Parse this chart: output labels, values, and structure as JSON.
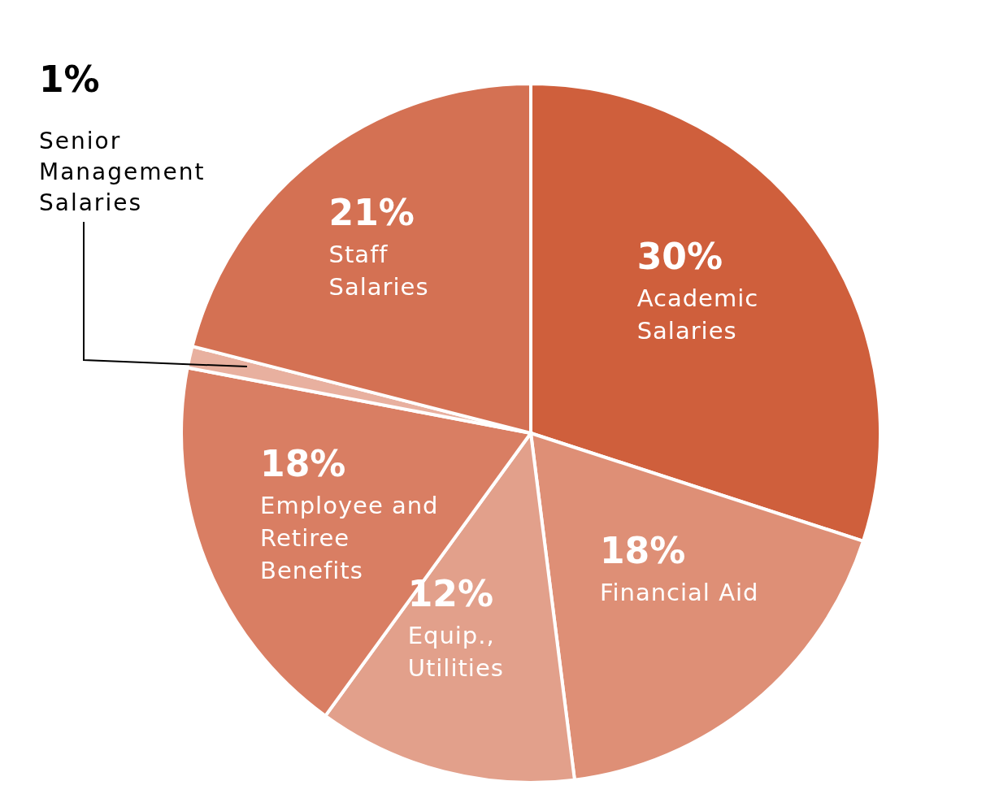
{
  "chart_data": {
    "type": "pie",
    "categories": [
      "Academic Salaries",
      "Financial Aid",
      "Equip., Utilities",
      "Employee and Retiree Benefits",
      "Senior Management Salaries",
      "Staff Salaries"
    ],
    "values": [
      30,
      18,
      12,
      18,
      1,
      21
    ],
    "value_labels": [
      "30%",
      "18%",
      "12%",
      "18%",
      "1%",
      "21%"
    ],
    "colors": [
      "#cf5f3c",
      "#de8f76",
      "#e2a08b",
      "#d97e63",
      "#e8b09f",
      "#d47153"
    ],
    "legend": false
  }
}
